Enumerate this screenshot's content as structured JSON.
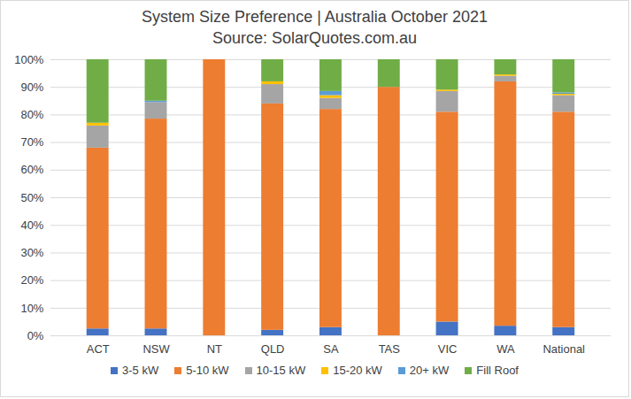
{
  "chart_data": {
    "type": "bar",
    "title": "System Size Preference  | Australia October 2021",
    "subtitle": "Source: SolarQuotes.com.au",
    "categories": [
      "ACT",
      "NSW",
      "NT",
      "QLD",
      "SA",
      "TAS",
      "VIC",
      "WA",
      "National"
    ],
    "stacked": true,
    "grid": true,
    "legend": "bottom",
    "ylim": [
      0,
      100
    ],
    "yticks": [
      {
        "value": 0,
        "label": "0%"
      },
      {
        "value": 10,
        "label": "10%"
      },
      {
        "value": 20,
        "label": "20%"
      },
      {
        "value": 30,
        "label": "30%"
      },
      {
        "value": 40,
        "label": "40%"
      },
      {
        "value": 50,
        "label": "50%"
      },
      {
        "value": 60,
        "label": "60%"
      },
      {
        "value": 70,
        "label": "70%"
      },
      {
        "value": 80,
        "label": "80%"
      },
      {
        "value": 90,
        "label": "90%"
      },
      {
        "value": 100,
        "label": "100%"
      }
    ],
    "series": [
      {
        "name": "3-5 kW",
        "color": "#4472c4",
        "values": [
          2.5,
          2.5,
          0,
          2,
          3,
          0,
          5,
          3.5,
          3
        ]
      },
      {
        "name": "5-10 kW",
        "color": "#ed7d31",
        "values": [
          65.5,
          76,
          100,
          82,
          79,
          90,
          76,
          88.5,
          78
        ]
      },
      {
        "name": "10-15 kW",
        "color": "#a5a5a5",
        "values": [
          8,
          6,
          0,
          7,
          4,
          0,
          7.5,
          2,
          6
        ]
      },
      {
        "name": "15-20 kW",
        "color": "#ffc000",
        "values": [
          1,
          0,
          0,
          1,
          1,
          0,
          0.5,
          0.5,
          0.5
        ]
      },
      {
        "name": "20+ kW",
        "color": "#5b9bd5",
        "values": [
          0,
          0.5,
          0,
          0,
          1.5,
          0,
          0,
          0,
          0.5
        ]
      },
      {
        "name": "Fill Roof",
        "color": "#70ad47",
        "values": [
          23,
          15,
          0,
          8,
          11.5,
          10,
          11,
          5.5,
          12
        ]
      }
    ]
  }
}
